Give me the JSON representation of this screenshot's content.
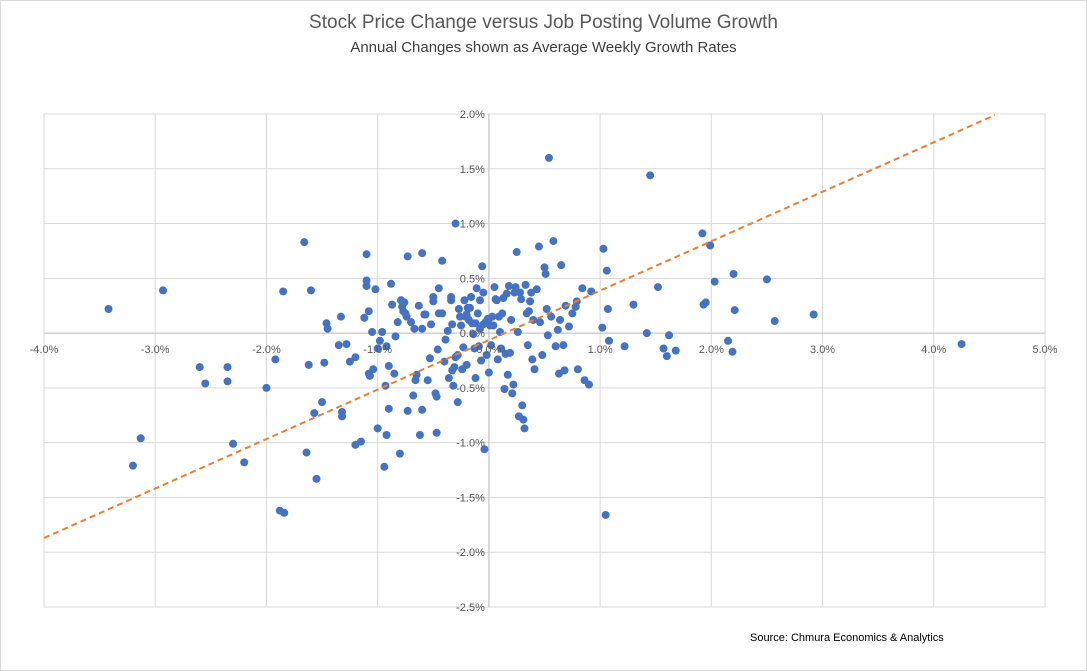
{
  "chart_data": {
    "type": "scatter",
    "title": "Stock Price Change versus Job Posting Volume Growth",
    "subtitle": "Annual Changes shown as Average Weekly Growth Rates",
    "xlabel": "",
    "ylabel": "",
    "xlim": [
      -4.0,
      5.0
    ],
    "ylim": [
      -2.5,
      2.0
    ],
    "x_ticks": [
      "-4.0%",
      "-3.0%",
      "-2.0%",
      "-1.0%",
      "0.0%",
      "1.0%",
      "2.0%",
      "3.0%",
      "4.0%",
      "5.0%"
    ],
    "y_ticks": [
      "2.0%",
      "1.5%",
      "1.0%",
      "0.5%",
      "0.0%",
      "-0.5%",
      "-1.0%",
      "-1.5%",
      "-2.0%",
      "-2.5%"
    ],
    "grid": true,
    "legend": "none",
    "point_color": "#4472c4",
    "trendline_color": "#ed7d31",
    "trendline": {
      "style": "dashed",
      "x": [
        -4.0,
        4.55
      ],
      "y": [
        -1.87,
        1.99
      ]
    },
    "series": [
      {
        "values": [
          [
            -3.42,
            0.22
          ],
          [
            -2.93,
            0.39
          ],
          [
            -3.2,
            -1.21
          ],
          [
            -3.13,
            -0.96
          ],
          [
            -2.6,
            -0.31
          ],
          [
            -2.55,
            -0.46
          ],
          [
            -2.35,
            -0.31
          ],
          [
            -2.35,
            -0.44
          ],
          [
            -2.3,
            -1.01
          ],
          [
            -2.2,
            -1.18
          ],
          [
            -2.0,
            -0.5
          ],
          [
            -1.92,
            -0.24
          ],
          [
            -1.88,
            -1.62
          ],
          [
            -1.84,
            -1.64
          ],
          [
            -1.85,
            0.38
          ],
          [
            -1.66,
            0.83
          ],
          [
            -1.64,
            -1.09
          ],
          [
            -1.62,
            -0.29
          ],
          [
            -1.6,
            0.39
          ],
          [
            -1.57,
            -0.73
          ],
          [
            -1.55,
            -1.33
          ],
          [
            -1.48,
            -0.27
          ],
          [
            -1.5,
            -0.63
          ],
          [
            -1.46,
            0.09
          ],
          [
            -1.45,
            0.04
          ],
          [
            -1.35,
            -0.11
          ],
          [
            -1.33,
            0.15
          ],
          [
            -1.32,
            -0.72
          ],
          [
            -1.32,
            -0.76
          ],
          [
            -1.28,
            -0.1
          ],
          [
            -1.25,
            -0.26
          ],
          [
            -1.2,
            -0.22
          ],
          [
            -1.2,
            -1.02
          ],
          [
            -1.15,
            -0.99
          ],
          [
            -1.12,
            0.14
          ],
          [
            -1.1,
            0.48
          ],
          [
            -1.1,
            0.43
          ],
          [
            -1.1,
            0.72
          ],
          [
            -1.08,
            -0.37
          ],
          [
            -1.08,
            0.2
          ],
          [
            -1.07,
            -0.39
          ],
          [
            -1.05,
            0.01
          ],
          [
            -1.04,
            -0.33
          ],
          [
            -1.02,
            0.4
          ],
          [
            -1.0,
            -0.87
          ],
          [
            -1.0,
            -0.14
          ],
          [
            -0.98,
            -0.07
          ],
          [
            -0.96,
            0.01
          ],
          [
            -0.94,
            -1.22
          ],
          [
            -0.93,
            -0.48
          ],
          [
            -0.92,
            -0.93
          ],
          [
            -0.92,
            -0.12
          ],
          [
            -0.9,
            -0.3
          ],
          [
            -0.9,
            -0.69
          ],
          [
            -0.88,
            0.45
          ],
          [
            -0.87,
            0.26
          ],
          [
            -0.85,
            -0.37
          ],
          [
            -0.84,
            -0.03
          ],
          [
            -0.82,
            0.1
          ],
          [
            -0.8,
            -1.1
          ],
          [
            -0.79,
            0.3
          ],
          [
            -0.78,
            0.24
          ],
          [
            -0.77,
            0.2
          ],
          [
            -0.76,
            0.28
          ],
          [
            -0.75,
            0.18
          ],
          [
            -0.74,
            0.15
          ],
          [
            -0.73,
            0.7
          ],
          [
            -0.73,
            -0.71
          ],
          [
            -0.7,
            0.1
          ],
          [
            -0.68,
            -0.57
          ],
          [
            -0.67,
            0.04
          ],
          [
            -0.66,
            -0.43
          ],
          [
            -0.65,
            -0.38
          ],
          [
            -0.63,
            0.25
          ],
          [
            -0.62,
            -0.93
          ],
          [
            -0.6,
            0.73
          ],
          [
            -0.6,
            -0.7
          ],
          [
            -0.6,
            0.04
          ],
          [
            -0.58,
            0.17
          ],
          [
            -0.57,
            0.17
          ],
          [
            -0.55,
            -0.43
          ],
          [
            -0.53,
            -0.23
          ],
          [
            -0.52,
            0.08
          ],
          [
            -0.5,
            0.33
          ],
          [
            -0.5,
            0.29
          ],
          [
            -0.48,
            -0.55
          ],
          [
            -0.47,
            -0.58
          ],
          [
            -0.47,
            -0.91
          ],
          [
            -0.46,
            -0.15
          ],
          [
            -0.45,
            0.18
          ],
          [
            -0.45,
            0.41
          ],
          [
            -0.42,
            0.18
          ],
          [
            -0.42,
            0.66
          ],
          [
            -0.4,
            -0.26
          ],
          [
            -0.39,
            -0.06
          ],
          [
            -0.37,
            0.02
          ],
          [
            -0.36,
            -0.41
          ],
          [
            -0.34,
            0.33
          ],
          [
            -0.34,
            0.3
          ],
          [
            -0.33,
            0.08
          ],
          [
            -0.33,
            -0.34
          ],
          [
            -0.32,
            -0.48
          ],
          [
            -0.31,
            -0.31
          ],
          [
            -0.3,
            1.0
          ],
          [
            -0.3,
            -0.22
          ],
          [
            -0.28,
            -0.63
          ],
          [
            -0.28,
            -0.2
          ],
          [
            -0.27,
            0.22
          ],
          [
            -0.26,
            0.15
          ],
          [
            -0.25,
            0.07
          ],
          [
            -0.24,
            -0.33
          ],
          [
            -0.23,
            -0.13
          ],
          [
            -0.22,
            0.3
          ],
          [
            -0.21,
            0.15
          ],
          [
            -0.2,
            -0.29
          ],
          [
            -0.2,
            0.17
          ],
          [
            -0.19,
            0.23
          ],
          [
            -0.18,
            0.12
          ],
          [
            -0.17,
            0.23
          ],
          [
            -0.16,
            0.33
          ],
          [
            -0.15,
            0.09
          ],
          [
            -0.14,
            -0.01
          ],
          [
            -0.13,
            -0.14
          ],
          [
            -0.12,
            -0.41
          ],
          [
            -0.12,
            0.09
          ],
          [
            -0.11,
            0.41
          ],
          [
            -0.1,
            0.18
          ],
          [
            -0.09,
            -0.12
          ],
          [
            -0.08,
            0.3
          ],
          [
            -0.08,
            0.04
          ],
          [
            -0.07,
            -0.25
          ],
          [
            -0.06,
            0.61
          ],
          [
            -0.05,
            0.08
          ],
          [
            -0.05,
            0.37
          ],
          [
            -0.04,
            -1.06
          ],
          [
            -0.03,
            0.1
          ],
          [
            -0.02,
            -0.2
          ],
          [
            -0.01,
            0.13
          ],
          [
            0.0,
            0.13
          ],
          [
            0.0,
            -0.36
          ],
          [
            0.01,
            0.07
          ],
          [
            0.02,
            -0.11
          ],
          [
            0.03,
            0.15
          ],
          [
            0.04,
            0.07
          ],
          [
            0.05,
            0.42
          ],
          [
            0.06,
            0.31
          ],
          [
            0.07,
            0.3
          ],
          [
            0.08,
            -0.24
          ],
          [
            0.09,
            0.15
          ],
          [
            0.1,
            0.01
          ],
          [
            0.11,
            -0.14
          ],
          [
            0.12,
            0.18
          ],
          [
            0.13,
            0.32
          ],
          [
            0.14,
            -0.51
          ],
          [
            0.15,
            -0.19
          ],
          [
            0.16,
            0.36
          ],
          [
            0.17,
            -0.38
          ],
          [
            0.18,
            0.43
          ],
          [
            0.19,
            -0.18
          ],
          [
            0.2,
            0.12
          ],
          [
            0.21,
            -0.55
          ],
          [
            0.22,
            -0.47
          ],
          [
            0.23,
            0.37
          ],
          [
            0.24,
            0.42
          ],
          [
            0.25,
            0.74
          ],
          [
            0.26,
            0.01
          ],
          [
            0.27,
            -0.76
          ],
          [
            0.28,
            0.37
          ],
          [
            0.29,
            0.31
          ],
          [
            0.3,
            -0.66
          ],
          [
            0.31,
            -0.79
          ],
          [
            0.32,
            -0.87
          ],
          [
            0.33,
            0.44
          ],
          [
            0.34,
            0.18
          ],
          [
            0.35,
            -0.11
          ],
          [
            0.36,
            0.2
          ],
          [
            0.37,
            0.29
          ],
          [
            0.38,
            0.37
          ],
          [
            0.39,
            -0.24
          ],
          [
            0.4,
            0.12
          ],
          [
            0.41,
            -0.33
          ],
          [
            0.43,
            0.4
          ],
          [
            0.45,
            0.79
          ],
          [
            0.46,
            0.1
          ],
          [
            0.48,
            -0.2
          ],
          [
            0.5,
            0.6
          ],
          [
            0.51,
            0.54
          ],
          [
            0.52,
            0.22
          ],
          [
            0.53,
            -0.02
          ],
          [
            0.54,
            1.6
          ],
          [
            0.56,
            0.15
          ],
          [
            0.58,
            0.84
          ],
          [
            0.6,
            -0.12
          ],
          [
            0.62,
            0.03
          ],
          [
            0.63,
            -0.37
          ],
          [
            0.64,
            0.12
          ],
          [
            0.65,
            0.62
          ],
          [
            0.67,
            -0.11
          ],
          [
            0.68,
            -0.34
          ],
          [
            0.69,
            0.25
          ],
          [
            0.72,
            0.06
          ],
          [
            0.75,
            0.18
          ],
          [
            0.78,
            0.24
          ],
          [
            0.79,
            0.29
          ],
          [
            0.8,
            -0.33
          ],
          [
            0.84,
            0.41
          ],
          [
            0.86,
            -0.43
          ],
          [
            0.9,
            -0.47
          ],
          [
            0.92,
            0.38
          ],
          [
            1.02,
            0.05
          ],
          [
            1.03,
            0.77
          ],
          [
            1.05,
            -1.66
          ],
          [
            1.06,
            0.57
          ],
          [
            1.07,
            0.22
          ],
          [
            1.08,
            -0.07
          ],
          [
            1.22,
            -0.12
          ],
          [
            1.3,
            0.26
          ],
          [
            1.42,
            0.0
          ],
          [
            1.45,
            1.44
          ],
          [
            1.52,
            0.42
          ],
          [
            1.57,
            -0.14
          ],
          [
            1.6,
            -0.21
          ],
          [
            1.62,
            -0.02
          ],
          [
            1.68,
            -0.16
          ],
          [
            1.92,
            0.91
          ],
          [
            1.93,
            0.26
          ],
          [
            1.95,
            0.28
          ],
          [
            1.99,
            0.8
          ],
          [
            2.03,
            0.47
          ],
          [
            2.15,
            -0.07
          ],
          [
            2.19,
            -0.17
          ],
          [
            2.2,
            0.54
          ],
          [
            2.21,
            0.21
          ],
          [
            2.5,
            0.49
          ],
          [
            2.57,
            0.11
          ],
          [
            2.92,
            0.17
          ],
          [
            4.25,
            -0.1
          ]
        ]
      }
    ]
  },
  "source": "Source: Chmura Economics & Analytics"
}
